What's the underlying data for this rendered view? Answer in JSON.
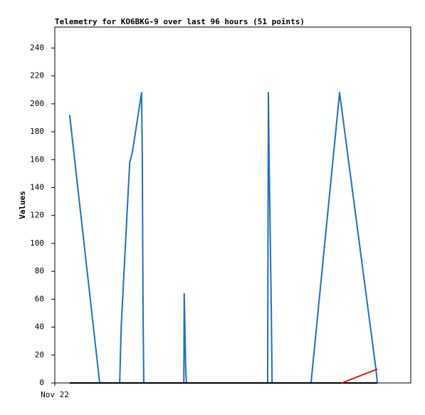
{
  "chart_data": {
    "type": "line",
    "title": "Telemetry for KO6BKG-9 over last 96 hours (51 points)",
    "y_label": "Values",
    "xlim": [
      0,
      96
    ],
    "xticks": [
      {
        "value": 0,
        "label": "Nov 22"
      }
    ],
    "ylim": [
      0,
      255
    ],
    "yticks": [
      0,
      20,
      40,
      60,
      80,
      100,
      120,
      140,
      160,
      180,
      200,
      220,
      240
    ],
    "series": [
      {
        "color": "#1f6fc8",
        "x": [
          4.0,
          12.1,
          17.5,
          17.9,
          20.2,
          20.9,
          23.4,
          23.6,
          23.8,
          24.0,
          34.8,
          34.9,
          35.3,
          35.5,
          57.4,
          57.6,
          57.8,
          58.4,
          58.6,
          69.1,
          76.8,
          86.6,
          87.0
        ],
        "values": [
          192,
          0,
          0,
          40,
          158,
          165,
          208,
          160,
          50,
          0,
          0,
          64,
          10,
          0,
          0,
          208,
          160,
          50,
          0,
          0,
          208,
          10,
          0
        ]
      },
      {
        "color": "#000000",
        "x": [
          4.0,
          87.0
        ],
        "values": [
          0,
          0
        ]
      },
      {
        "color": "#e01818",
        "x": [
          77.4,
          87.0
        ],
        "values": [
          0,
          10
        ]
      }
    ]
  }
}
